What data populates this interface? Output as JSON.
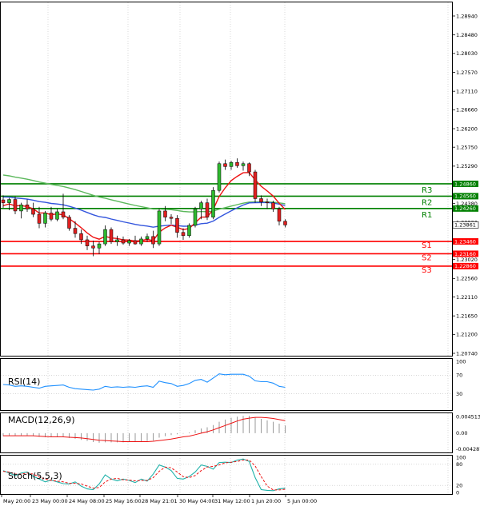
{
  "chart_data": {
    "type": "candlestick",
    "price_axis": {
      "ticks": [
        "1.28940",
        "1.28480",
        "1.28030",
        "1.27570",
        "1.27110",
        "1.26660",
        "1.26200",
        "1.25750",
        "1.25290",
        "1.24830",
        "1.24380",
        "1.23920",
        "1.23470",
        "1.23020",
        "1.22560",
        "1.22110",
        "1.21650",
        "1.21200",
        "1.20740"
      ],
      "range": [
        1.2074,
        1.2894
      ]
    },
    "time_labels": [
      "May 20:00",
      "23 May 00:00",
      "24 May 08:00",
      "25 May 16:00",
      "28 May 21:01",
      "30 May 04:00",
      "31 May 12:00",
      "1 Jun 20:00",
      "5 Jun 00:00"
    ],
    "levels": [
      {
        "label": "R3",
        "value_label": "1.24860",
        "color": "#008000"
      },
      {
        "label": "R2",
        "value_label": "1.24560",
        "color": "#008000"
      },
      {
        "label": "R1",
        "value_label": "1.24260",
        "color": "#008000"
      },
      {
        "label": "S1",
        "value_label": "1.23460",
        "color": "#ff0000"
      },
      {
        "label": "S2",
        "value_label": "1.23160",
        "color": "#ff0000"
      },
      {
        "label": "S3",
        "value_label": "1.22860",
        "color": "#ff0000"
      }
    ],
    "current_price_label": "1.23861",
    "candles": [
      [
        1.2447,
        1.2458,
        1.2428,
        1.244
      ],
      [
        1.244,
        1.2452,
        1.2422,
        1.2448
      ],
      [
        1.2448,
        1.2455,
        1.2412,
        1.242
      ],
      [
        1.242,
        1.244,
        1.2402,
        1.2435
      ],
      [
        1.2435,
        1.2448,
        1.2418,
        1.2425
      ],
      [
        1.2425,
        1.244,
        1.2405,
        1.2412
      ],
      [
        1.2412,
        1.243,
        1.2378,
        1.239
      ],
      [
        1.239,
        1.242,
        1.238,
        1.2415
      ],
      [
        1.2415,
        1.243,
        1.2395,
        1.24
      ],
      [
        1.24,
        1.2425,
        1.2395,
        1.2418
      ],
      [
        1.2418,
        1.2462,
        1.24,
        1.2405
      ],
      [
        1.2405,
        1.241,
        1.2372,
        1.2378
      ],
      [
        1.2378,
        1.2395,
        1.2355,
        1.2365
      ],
      [
        1.2365,
        1.2375,
        1.234,
        1.235
      ],
      [
        1.235,
        1.236,
        1.2325,
        1.2335
      ],
      [
        1.2335,
        1.2348,
        1.231,
        1.233
      ],
      [
        1.233,
        1.2345,
        1.2315,
        1.234
      ],
      [
        1.234,
        1.2385,
        1.2335,
        1.2375
      ],
      [
        1.2375,
        1.238,
        1.234,
        1.2345
      ],
      [
        1.2345,
        1.236,
        1.2335,
        1.235
      ],
      [
        1.235,
        1.2358,
        1.2338,
        1.2342
      ],
      [
        1.2342,
        1.2352,
        1.2335,
        1.2348
      ],
      [
        1.2348,
        1.236,
        1.2338,
        1.234
      ],
      [
        1.234,
        1.2358,
        1.2335,
        1.2352
      ],
      [
        1.2352,
        1.2365,
        1.2345,
        1.2358
      ],
      [
        1.2358,
        1.2372,
        1.233,
        1.234
      ],
      [
        1.234,
        1.2425,
        1.2335,
        1.242
      ],
      [
        1.242,
        1.2432,
        1.2395,
        1.2405
      ],
      [
        1.2405,
        1.2412,
        1.2388,
        1.2402
      ],
      [
        1.2402,
        1.241,
        1.2355,
        1.2368
      ],
      [
        1.2368,
        1.2378,
        1.235,
        1.236
      ],
      [
        1.236,
        1.239,
        1.2355,
        1.2385
      ],
      [
        1.2385,
        1.243,
        1.238,
        1.2425
      ],
      [
        1.2425,
        1.2445,
        1.24,
        1.244
      ],
      [
        1.244,
        1.245,
        1.2398,
        1.2405
      ],
      [
        1.2405,
        1.2478,
        1.24,
        1.247
      ],
      [
        1.247,
        1.254,
        1.2465,
        1.2535
      ],
      [
        1.2535,
        1.2545,
        1.252,
        1.2528
      ],
      [
        1.2528,
        1.2542,
        1.252,
        1.2538
      ],
      [
        1.2538,
        1.2548,
        1.2525,
        1.253
      ],
      [
        1.253,
        1.254,
        1.2518,
        1.2535
      ],
      [
        1.2535,
        1.2538,
        1.2505,
        1.2515
      ],
      [
        1.2515,
        1.252,
        1.244,
        1.245
      ],
      [
        1.245,
        1.2458,
        1.2432,
        1.2442
      ],
      [
        1.2442,
        1.245,
        1.2425,
        1.244
      ],
      [
        1.244,
        1.2445,
        1.2418,
        1.2425
      ],
      [
        1.2425,
        1.243,
        1.2385,
        1.2395
      ],
      [
        1.2395,
        1.24,
        1.238,
        1.2386
      ]
    ],
    "indicators": {
      "rsi": {
        "label": "RSI(14)",
        "ticks": [
          "70",
          "30"
        ],
        "range": [
          0,
          100
        ],
        "values": [
          50,
          49,
          46,
          47,
          46,
          44,
          42,
          46,
          47,
          48,
          49,
          44,
          41,
          40,
          39,
          38,
          40,
          46,
          44,
          45,
          44,
          45,
          44,
          46,
          47,
          44,
          57,
          54,
          52,
          46,
          48,
          52,
          59,
          61,
          55,
          64,
          73,
          71,
          72,
          72,
          72,
          68,
          58,
          56,
          56,
          53,
          46,
          44
        ]
      },
      "macd": {
        "label": "MACD(12,26,9)",
        "ticks": [
          "0.004513",
          "0.00",
          "-0.004287"
        ],
        "range": [
          -0.0048,
          0.0052
        ],
        "histogram": [
          -0.0008,
          -0.0007,
          -0.0007,
          -0.0006,
          -0.0007,
          -0.0008,
          -0.001,
          -0.0011,
          -0.0011,
          -0.0011,
          -0.0011,
          -0.0013,
          -0.0015,
          -0.0018,
          -0.0021,
          -0.0024,
          -0.0026,
          -0.0025,
          -0.0025,
          -0.0025,
          -0.0025,
          -0.0024,
          -0.0024,
          -0.0022,
          -0.0021,
          -0.002,
          -0.0012,
          -0.0008,
          -0.0005,
          -0.0003,
          -0.0001,
          0.0002,
          0.0008,
          0.0013,
          0.0016,
          0.0022,
          0.0031,
          0.0037,
          0.0042,
          0.0045,
          0.0047,
          0.0047,
          0.0043,
          0.0039,
          0.0035,
          0.0031,
          0.0026,
          0.0021
        ],
        "signal": [
          -0.0007,
          -0.0007,
          -0.0007,
          -0.0007,
          -0.0007,
          -0.0007,
          -0.0008,
          -0.0009,
          -0.001,
          -0.001,
          -0.001,
          -0.0011,
          -0.0012,
          -0.0013,
          -0.0015,
          -0.0017,
          -0.0019,
          -0.002,
          -0.0021,
          -0.0022,
          -0.0023,
          -0.0023,
          -0.0023,
          -0.0023,
          -0.0023,
          -0.0022,
          -0.002,
          -0.0018,
          -0.0016,
          -0.0013,
          -0.001,
          -0.0008,
          -0.0004,
          0,
          0.0004,
          0.0009,
          0.0015,
          0.0021,
          0.0027,
          0.0033,
          0.0038,
          0.0041,
          0.0043,
          0.0043,
          0.0042,
          0.004,
          0.0037,
          0.0034
        ]
      },
      "stoch": {
        "label": "Stoch(5,5,3)",
        "ticks": [
          "100",
          "80",
          "20",
          "0"
        ],
        "range": [
          0,
          100
        ],
        "main": [
          62,
          55,
          48,
          55,
          58,
          46,
          38,
          30,
          35,
          30,
          25,
          24,
          30,
          18,
          10,
          8,
          24,
          50,
          38,
          33,
          38,
          34,
          28,
          38,
          32,
          52,
          78,
          72,
          62,
          40,
          38,
          45,
          58,
          78,
          74,
          66,
          85,
          86,
          85,
          92,
          95,
          88,
          42,
          8,
          6,
          5,
          10,
          12
        ],
        "signal": [
          60,
          58,
          52,
          52,
          55,
          52,
          44,
          38,
          34,
          32,
          30,
          26,
          26,
          24,
          18,
          12,
          14,
          30,
          38,
          40,
          36,
          35,
          33,
          34,
          34,
          42,
          60,
          72,
          70,
          58,
          45,
          42,
          48,
          62,
          72,
          74,
          78,
          84,
          86,
          88,
          92,
          92,
          75,
          45,
          18,
          7,
          7,
          9
        ]
      }
    }
  }
}
